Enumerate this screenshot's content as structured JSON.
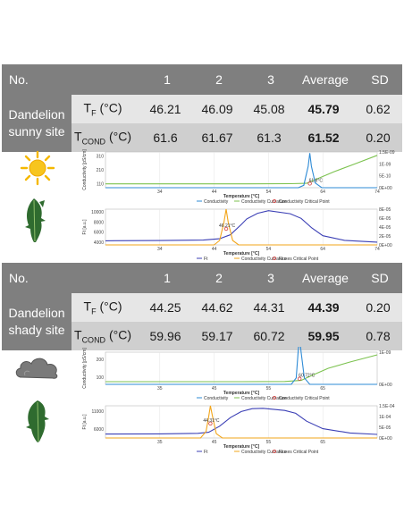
{
  "table1": {
    "header": {
      "no": "No.",
      "c1": "1",
      "c2": "2",
      "c3": "3",
      "avg": "Average",
      "sd": "SD"
    },
    "label_line1": "Dandelion",
    "label_line2": "sunny site",
    "rows": [
      {
        "param_main": "T",
        "param_sub": "F",
        "param_unit": " (°C)",
        "v1": "46.21",
        "v2": "46.09",
        "v3": "45.08",
        "avg": "45.79",
        "sd": "0.62"
      },
      {
        "param_main": "T",
        "param_sub": "COND",
        "param_unit": " (°C)",
        "v1": "61.6",
        "v2": "61.67",
        "v3": "61.3",
        "avg": "61.52",
        "sd": "0.20"
      }
    ]
  },
  "table2": {
    "header": {
      "no": "No.",
      "c1": "1",
      "c2": "2",
      "c3": "3",
      "avg": "Average",
      "sd": "SD"
    },
    "label_line1": "Dandelion",
    "label_line2": "shady site",
    "rows": [
      {
        "param_main": "T",
        "param_sub": "F",
        "param_unit": " (°C)",
        "v1": "44.25",
        "v2": "44.62",
        "v3": "44.31",
        "avg": "44.39",
        "sd": "0.20"
      },
      {
        "param_main": "T",
        "param_sub": "COND",
        "param_unit": " (°C)",
        "v1": "59.96",
        "v2": "59.17",
        "v3": "60.72",
        "avg": "59.95",
        "sd": "0.78"
      }
    ]
  },
  "colors": {
    "header_bg": "#7f7f7f",
    "row1_bg": "#e6e6e6",
    "row2_bg": "#cfcfcf",
    "conductivity": "#2e8bd6",
    "curvature": "#7cc24f",
    "flux": "#f2a51a",
    "flux_curvature": "#3b3fb5",
    "critical_point": "#d23a3a",
    "sun": "#f5b800",
    "cloud": "#6e6e6e",
    "leaf": "#2f6b2f"
  },
  "icons": {
    "sunny": "sun-icon",
    "shady": "cloud-icon",
    "plant": "dandelion-leaf-icon"
  },
  "chart_data": [
    {
      "type": "line",
      "xlabel": "Temperature [°C]",
      "ylabel": "Conductivity [pS/cm]",
      "xlim": [
        24,
        74
      ],
      "ylim": [
        80,
        340
      ],
      "xticks": [
        "34",
        "44",
        "54",
        "64",
        "74"
      ],
      "yticks": [
        "110",
        "210",
        "310"
      ],
      "y2ticks": [
        "0E+00",
        "5E-10",
        "1E-09",
        "1.5E-09"
      ],
      "legend": [
        "Conductivity",
        "Conductivity Curvature",
        "Conductivity Critical Point"
      ],
      "annotation": "61.6°C",
      "critical_x": 61.6,
      "series": [
        {
          "name": "Conductivity",
          "x": [
            24,
            50,
            58,
            61,
            63,
            66,
            70,
            74
          ],
          "values": [
            108,
            108,
            109,
            112,
            145,
            196,
            255,
            315
          ]
        },
        {
          "name": "Conductivity Curvature",
          "axis": "y2",
          "x": [
            24,
            59.5,
            60.5,
            61.3,
            61.6,
            61.9,
            62.6,
            63.8,
            74
          ],
          "values": [
            0,
            0,
            1e-10,
            9e-10,
            1.45e-09,
            9e-10,
            2e-10,
            0,
            0
          ]
        }
      ]
    },
    {
      "type": "line",
      "xlabel": "Temperature [°C]",
      "ylabel": "Ft [a.u.]",
      "xlim": [
        24,
        74
      ],
      "ylim": [
        3500,
        10500
      ],
      "xticks": [
        "34",
        "44",
        "54",
        "64",
        "74"
      ],
      "yticks": [
        "4000",
        "6000",
        "8000",
        "10000"
      ],
      "y2ticks": [
        "0E+00",
        "2E-05",
        "4E-05",
        "6E-05",
        "8E-05"
      ],
      "legend": [
        "Ft",
        "Conductivity Curvature",
        "Fluxes Critical Point"
      ],
      "annotation": "46.21°C",
      "critical_x": 46.21,
      "series": [
        {
          "name": "Ft",
          "x": [
            24,
            34,
            42,
            45,
            47,
            49,
            50,
            52,
            54,
            58,
            60,
            62,
            64,
            68,
            74
          ],
          "values": [
            4300,
            4350,
            4450,
            4700,
            5500,
            7500,
            8600,
            9700,
            10200,
            9600,
            8700,
            6800,
            5300,
            4400,
            4050
          ]
        },
        {
          "name": "Conductivity Curvature",
          "axis": "y2",
          "x": [
            24,
            44,
            45,
            45.8,
            46.21,
            46.6,
            47.4,
            48.5,
            74
          ],
          "values": [
            0,
            0,
            1e-05,
            5e-05,
            8e-05,
            5e-05,
            1e-05,
            0,
            0
          ]
        }
      ]
    },
    {
      "type": "line",
      "xlabel": "Temperature [°C]",
      "ylabel": "Conductivity [pS/cm]",
      "xlim": [
        25,
        75
      ],
      "ylim": [
        60,
        240
      ],
      "xticks": [
        "35",
        "45",
        "55",
        "65"
      ],
      "yticks": [
        "100",
        "200"
      ],
      "y2ticks": [
        "0E+00",
        "1E-09"
      ],
      "legend": [
        "Conductivity",
        "Conductivity Curvature",
        "Conductivity Critical Point"
      ],
      "annotation": "60.72°C",
      "critical_x": 60.72,
      "series": [
        {
          "name": "Conductivity",
          "x": [
            25,
            50,
            58,
            61,
            63,
            66,
            70,
            75
          ],
          "values": [
            75,
            75,
            76,
            82,
            110,
            150,
            185,
            225
          ]
        },
        {
          "name": "Conductivity Curvature",
          "axis": "y2",
          "x": [
            25,
            59.2,
            60.1,
            60.5,
            60.72,
            61,
            61.6,
            62.6,
            75
          ],
          "values": [
            0,
            0,
            2e-10,
            1.1e-09,
            1.45e-09,
            1e-09,
            2e-10,
            0,
            0
          ]
        }
      ]
    },
    {
      "type": "line",
      "xlabel": "Temperature [°C]",
      "ylabel": "Ft [a.u.]",
      "xlim": [
        25,
        75
      ],
      "ylim": [
        3500,
        12500
      ],
      "xticks": [
        "35",
        "45",
        "55",
        "65"
      ],
      "yticks": [
        "6000",
        "11000"
      ],
      "y2ticks": [
        "0E+00",
        "5E-05",
        "1E-04",
        "1.5E-04"
      ],
      "legend": [
        "Ft",
        "Conductivity Curvature",
        "Fluxes Critical Point"
      ],
      "annotation": "44.31°C",
      "critical_x": 44.31,
      "series": [
        {
          "name": "Ft",
          "x": [
            25,
            35,
            42,
            44,
            46,
            48,
            50,
            52,
            54,
            58,
            60,
            62,
            65,
            70,
            75
          ],
          "values": [
            4600,
            4650,
            4800,
            5100,
            6800,
            9200,
            10900,
            11700,
            11800,
            11200,
            10400,
            8200,
            6100,
            4900,
            4500
          ]
        },
        {
          "name": "Conductivity Curvature",
          "axis": "y2",
          "x": [
            25,
            42.5,
            43.5,
            44,
            44.31,
            44.7,
            45.4,
            46.5,
            75
          ],
          "values": [
            0,
            0,
            3e-05,
            0.0001,
            0.00015,
            0.0001,
            2e-05,
            0,
            0
          ]
        }
      ]
    }
  ]
}
